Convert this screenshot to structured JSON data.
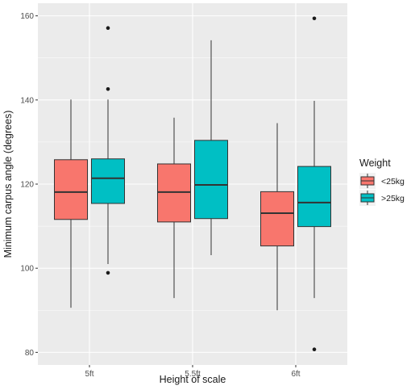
{
  "chart_data": {
    "type": "boxplot",
    "xlabel": "Height of scale",
    "ylabel": "Minimum carpus angle (degrees)",
    "ylim": [
      77,
      163
    ],
    "yticks": [
      80,
      100,
      120,
      140,
      160
    ],
    "grid": true,
    "legend_position": "right",
    "categories": [
      "5ft",
      "5.5ft",
      "6ft"
    ],
    "legend": {
      "title": "Weight",
      "entries": [
        {
          "label": "<25kg",
          "color": "#F8766D"
        },
        {
          "label": ">25kg",
          "color": "#00BFC4"
        }
      ]
    },
    "series": [
      {
        "name": "<25kg",
        "color": "#F8766D",
        "boxes": [
          {
            "category": "5ft",
            "whisker_low": 90.6,
            "q1": 111.6,
            "median": 118.1,
            "q3": 125.8,
            "whisker_high": 140.1,
            "outliers": []
          },
          {
            "category": "5.5ft",
            "whisker_low": 92.9,
            "q1": 111.0,
            "median": 118.1,
            "q3": 124.8,
            "whisker_high": 135.8,
            "outliers": []
          },
          {
            "category": "6ft",
            "whisker_low": 90.0,
            "q1": 105.3,
            "median": 113.1,
            "q3": 118.2,
            "whisker_high": 134.5,
            "outliers": []
          }
        ]
      },
      {
        "name": ">25kg",
        "color": "#00BFC4",
        "boxes": [
          {
            "category": "5ft",
            "whisker_low": 101.0,
            "q1": 115.4,
            "median": 121.4,
            "q3": 126.0,
            "whisker_high": 140.1,
            "outliers": [
              157.1,
              142.6,
              98.9
            ]
          },
          {
            "category": "5.5ft",
            "whisker_low": 103.1,
            "q1": 111.8,
            "median": 119.8,
            "q3": 130.4,
            "whisker_high": 154.2,
            "outliers": []
          },
          {
            "category": "6ft",
            "whisker_low": 92.9,
            "q1": 109.9,
            "median": 115.6,
            "q3": 124.2,
            "whisker_high": 139.8,
            "outliers": [
              159.4,
              80.7
            ]
          }
        ]
      }
    ]
  }
}
